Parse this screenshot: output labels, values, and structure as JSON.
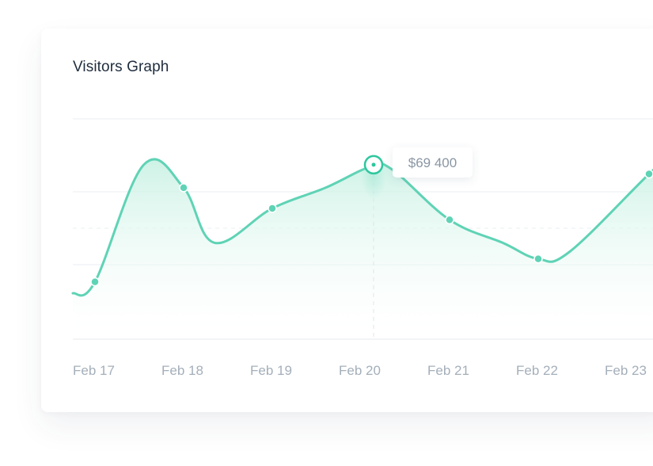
{
  "card": {
    "title": "Visitors Graph"
  },
  "chart_data": {
    "type": "area",
    "title": "Visitors Graph",
    "xlabel": "",
    "ylabel": "",
    "categories": [
      "Feb 17",
      "Feb 18",
      "Feb 19",
      "Feb 20",
      "Feb 21",
      "Feb 22",
      "Feb 23"
    ],
    "series": [
      {
        "color": "#5fd3b5",
        "points": [
          {
            "x": 16.75,
            "y": 10
          },
          {
            "x": 17.0,
            "y": 12.5
          },
          {
            "x": 17.55,
            "y": 38
          },
          {
            "x": 18.0,
            "y": 33
          },
          {
            "x": 18.35,
            "y": 21
          },
          {
            "x": 19.0,
            "y": 28.5
          },
          {
            "x": 19.6,
            "y": 33
          },
          {
            "x": 20.1,
            "y": 37.5
          },
          {
            "x": 20.35,
            "y": 37
          },
          {
            "x": 21.0,
            "y": 26
          },
          {
            "x": 21.6,
            "y": 21
          },
          {
            "x": 22.0,
            "y": 17.5
          },
          {
            "x": 22.35,
            "y": 19
          },
          {
            "x": 23.25,
            "y": 36
          },
          {
            "x": 23.5,
            "y": 40
          }
        ],
        "markers": [
          {
            "x": 17.0,
            "y": 12.5
          },
          {
            "x": 18.0,
            "y": 33
          },
          {
            "x": 19.0,
            "y": 28.5
          },
          {
            "x": 21.0,
            "y": 26
          },
          {
            "x": 22.0,
            "y": 17.5
          },
          {
            "x": 23.25,
            "y": 36
          }
        ]
      }
    ],
    "highlight": {
      "x": 20.0,
      "y": 38,
      "label": "$69 400"
    },
    "xlim": [
      16.75,
      23.5
    ],
    "ylim": [
      0,
      48
    ],
    "grid": {
      "horizontal": true,
      "dashed_midline": true
    },
    "legend": "none",
    "colors": {
      "line": "#5fd3b5",
      "fill_top": "#c9f1e4",
      "highlight_ring": "#2ec79e",
      "grid": "#e9edf1",
      "tick_text": "#a4afba"
    }
  }
}
